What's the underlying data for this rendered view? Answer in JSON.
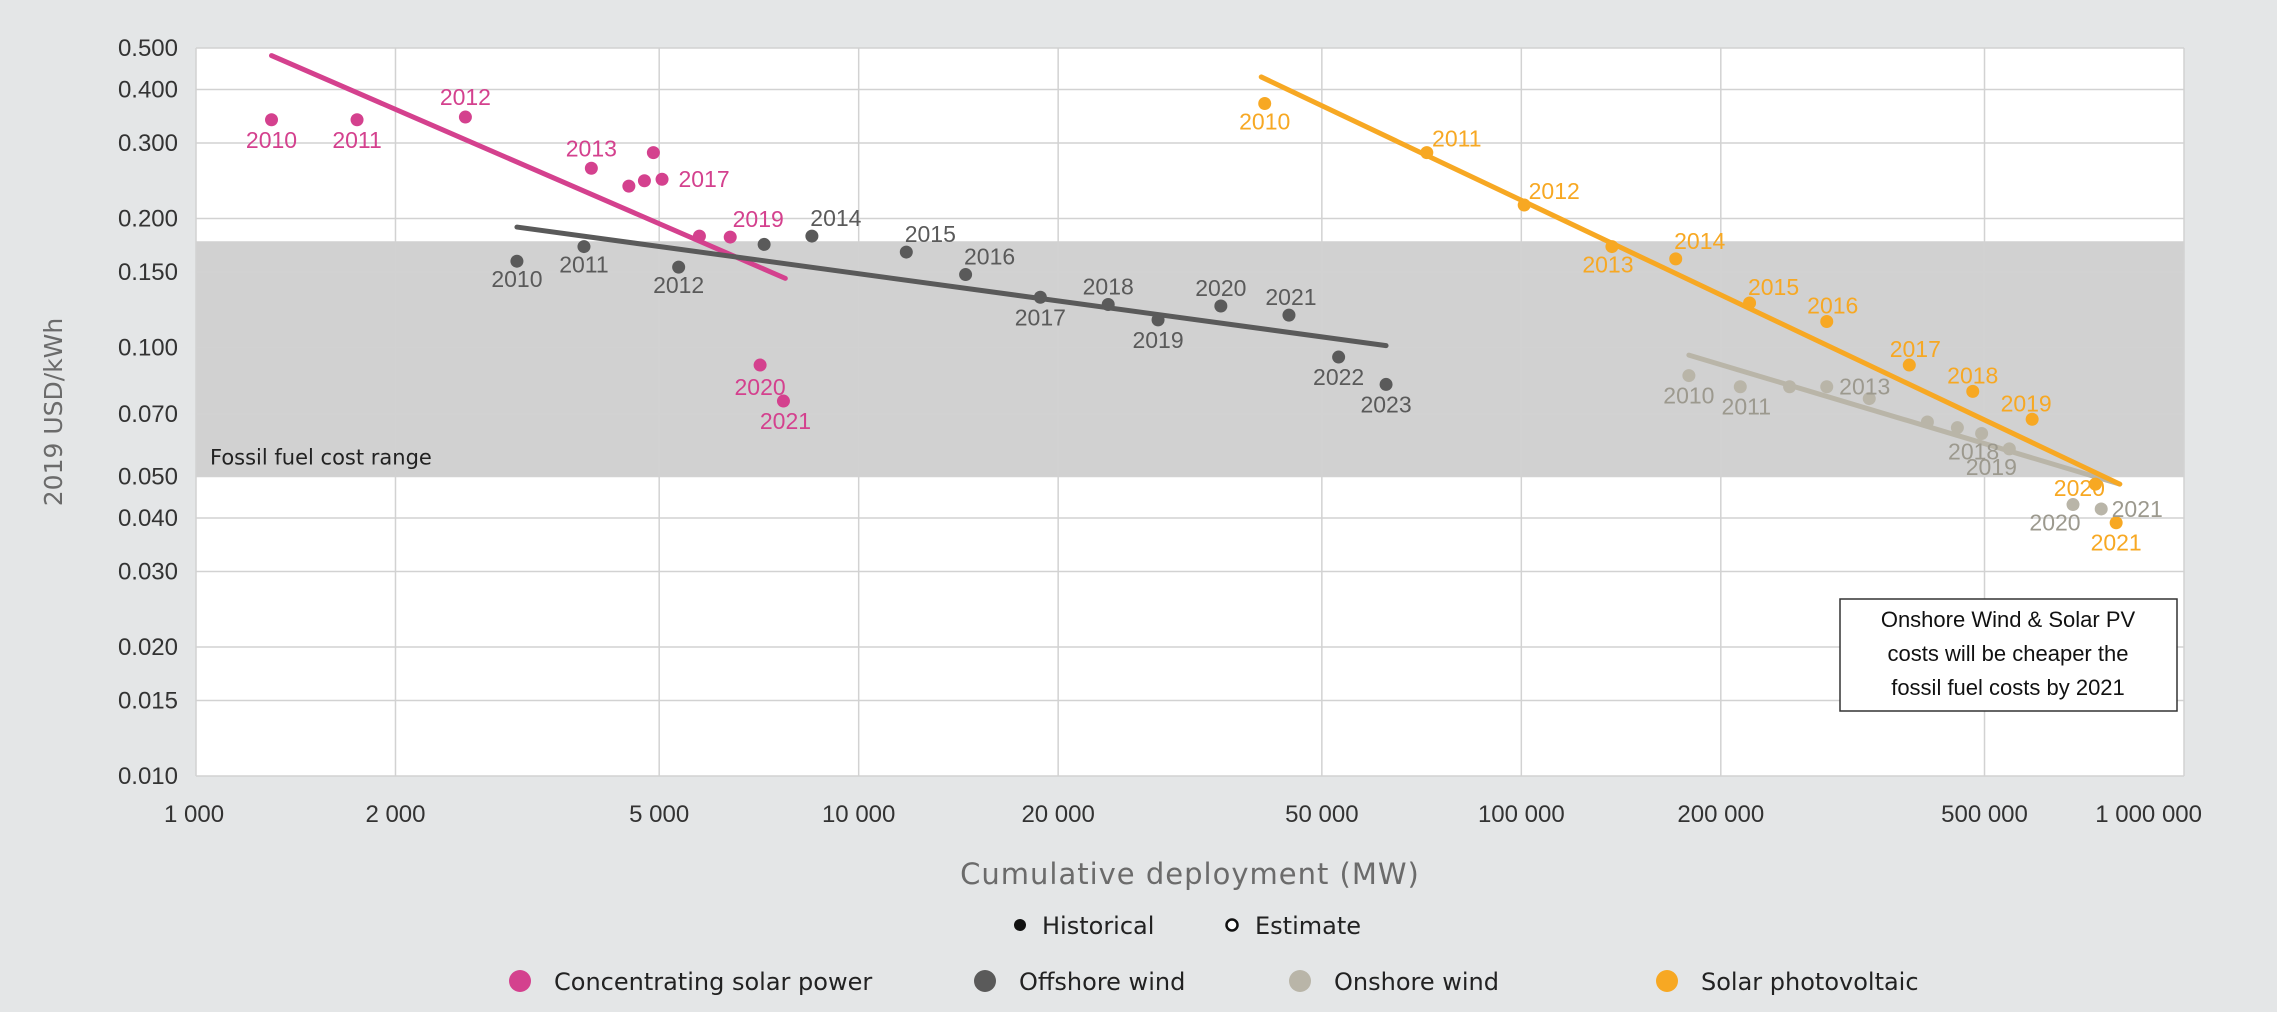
{
  "chart_data": {
    "type": "scatter",
    "title": "",
    "xlabel": "Cumulative deployment (MW)",
    "ylabel": "2019 USD/kWh",
    "xscale": "log",
    "yscale": "log",
    "xlim": [
      1000,
      1000000
    ],
    "ylim": [
      0.01,
      0.5
    ],
    "x_ticks": [
      {
        "value": 1000,
        "label": "1 000"
      },
      {
        "value": 2000,
        "label": "2 000"
      },
      {
        "value": 5000,
        "label": "5 000"
      },
      {
        "value": 10000,
        "label": "10 000"
      },
      {
        "value": 20000,
        "label": "20 000"
      },
      {
        "value": 50000,
        "label": "50 000"
      },
      {
        "value": 100000,
        "label": "100 000"
      },
      {
        "value": 200000,
        "label": "200 000"
      },
      {
        "value": 500000,
        "label": "500 000"
      },
      {
        "value": 1000000,
        "label": "1 000 000"
      }
    ],
    "y_ticks": [
      {
        "value": 0.5,
        "label": "0.500"
      },
      {
        "value": 0.4,
        "label": "0.400"
      },
      {
        "value": 0.3,
        "label": "0.300"
      },
      {
        "value": 0.2,
        "label": "0.200"
      },
      {
        "value": 0.15,
        "label": "0.150"
      },
      {
        "value": 0.1,
        "label": "0.100"
      },
      {
        "value": 0.07,
        "label": "0.070"
      },
      {
        "value": 0.05,
        "label": "0.050"
      },
      {
        "value": 0.04,
        "label": "0.040"
      },
      {
        "value": 0.03,
        "label": "0.030"
      },
      {
        "value": 0.02,
        "label": "0.020"
      },
      {
        "value": 0.015,
        "label": "0.015"
      },
      {
        "value": 0.01,
        "label": "0.010"
      }
    ],
    "grid": true,
    "fossil_band": {
      "low": 0.05,
      "high": 0.177,
      "label": "Fossil fuel cost range"
    },
    "annotation": [
      "Onshore Wind & Solar PV",
      "costs will be cheaper the",
      "fossil fuel costs by 2021"
    ],
    "marker_legend": {
      "historical": "Historical",
      "estimate": "Estimate"
    },
    "legend_placement": "bottom",
    "series": [
      {
        "name": "Concentrating solar power",
        "color": "#d4418e",
        "points": [
          {
            "x": 1300,
            "y": 0.34,
            "label": "2010",
            "dx": 0,
            "dy": 28
          },
          {
            "x": 1750,
            "y": 0.34,
            "label": "2011",
            "dx": 0,
            "dy": 28
          },
          {
            "x": 2550,
            "y": 0.345,
            "label": "2012",
            "dx": 0,
            "dy": -12
          },
          {
            "x": 3950,
            "y": 0.262,
            "label": "2013",
            "dx": 0,
            "dy": -12
          },
          {
            "x": 4500,
            "y": 0.238,
            "label": ""
          },
          {
            "x": 4750,
            "y": 0.245,
            "label": ""
          },
          {
            "x": 4900,
            "y": 0.285,
            "label": ""
          },
          {
            "x": 5050,
            "y": 0.247,
            "label": "2017",
            "dx": 42,
            "dy": 8
          },
          {
            "x": 5750,
            "y": 0.182,
            "label": ""
          },
          {
            "x": 6400,
            "y": 0.181,
            "label": "2019",
            "dx": 28,
            "dy": -10
          },
          {
            "x": 7100,
            "y": 0.091,
            "label": "2020",
            "dx": 0,
            "dy": 30
          },
          {
            "x": 7700,
            "y": 0.075,
            "label": "2021",
            "dx": 2,
            "dy": 28
          }
        ],
        "trend": [
          [
            1300,
            0.48
          ],
          [
            7750,
            0.145
          ]
        ]
      },
      {
        "name": "Offshore wind",
        "color": "#5a5a5a",
        "points": [
          {
            "x": 3050,
            "y": 0.159,
            "label": "2010",
            "dx": 0,
            "dy": 26
          },
          {
            "x": 3850,
            "y": 0.172,
            "label": "2011",
            "dx": 0,
            "dy": 26
          },
          {
            "x": 5350,
            "y": 0.154,
            "label": "2012",
            "dx": 0,
            "dy": 26
          },
          {
            "x": 8500,
            "y": 0.182,
            "label": "2014",
            "dx": 24,
            "dy": -10
          },
          {
            "x": 7200,
            "y": 0.174,
            "label": ""
          },
          {
            "x": 11800,
            "y": 0.167,
            "label": "2015",
            "dx": 24,
            "dy": -10
          },
          {
            "x": 14500,
            "y": 0.148,
            "label": "2016",
            "dx": 24,
            "dy": -10
          },
          {
            "x": 18800,
            "y": 0.131,
            "label": "2017",
            "dx": 0,
            "dy": 28
          },
          {
            "x": 23800,
            "y": 0.126,
            "label": "2018",
            "dx": 0,
            "dy": -10
          },
          {
            "x": 28300,
            "y": 0.116,
            "label": "2019",
            "dx": 0,
            "dy": 28
          },
          {
            "x": 35200,
            "y": 0.125,
            "label": "2020",
            "dx": 0,
            "dy": -10
          },
          {
            "x": 44600,
            "y": 0.119,
            "label": "2021",
            "dx": 2,
            "dy": -10
          },
          {
            "x": 53000,
            "y": 0.095,
            "label": "2022",
            "dx": 0,
            "dy": 28
          },
          {
            "x": 62500,
            "y": 0.082,
            "label": "2023",
            "dx": 0,
            "dy": 28
          }
        ],
        "trend": [
          [
            3050,
            0.191
          ],
          [
            62500,
            0.101
          ]
        ]
      },
      {
        "name": "Onshore wind",
        "color": "#b9b5a8",
        "points": [
          {
            "x": 179000,
            "y": 0.086,
            "label": "2010",
            "dx": 0,
            "dy": 28
          },
          {
            "x": 214000,
            "y": 0.081,
            "label": "2011",
            "dx": 6,
            "dy": 28
          },
          {
            "x": 254000,
            "y": 0.081,
            "label": ""
          },
          {
            "x": 289000,
            "y": 0.081,
            "label": "2013",
            "dx": 38,
            "dy": 8
          },
          {
            "x": 335000,
            "y": 0.076,
            "label": ""
          },
          {
            "x": 410000,
            "y": 0.067,
            "label": ""
          },
          {
            "x": 455000,
            "y": 0.065,
            "label": ""
          },
          {
            "x": 495000,
            "y": 0.063,
            "label": "2018",
            "dx": -8,
            "dy": 26
          },
          {
            "x": 545000,
            "y": 0.058,
            "label": "2019",
            "dx": -18,
            "dy": 26
          },
          {
            "x": 680000,
            "y": 0.043,
            "label": "2020",
            "dx": -18,
            "dy": 26
          },
          {
            "x": 750000,
            "y": 0.042,
            "label": "2021",
            "dx": 36,
            "dy": 8
          }
        ],
        "trend": [
          [
            179000,
            0.096
          ],
          [
            800000,
            0.048
          ]
        ]
      },
      {
        "name": "Solar photovoltaic",
        "color": "#f7a823",
        "points": [
          {
            "x": 41000,
            "y": 0.371,
            "label": "2010",
            "dx": 0,
            "dy": 26
          },
          {
            "x": 72000,
            "y": 0.285,
            "label": "2011",
            "dx": 30,
            "dy": -6
          },
          {
            "x": 101000,
            "y": 0.215,
            "label": "2012",
            "dx": 30,
            "dy": -6
          },
          {
            "x": 137000,
            "y": 0.172,
            "label": "2013",
            "dx": -4,
            "dy": 26
          },
          {
            "x": 171000,
            "y": 0.161,
            "label": "2014",
            "dx": 24,
            "dy": -10
          },
          {
            "x": 221000,
            "y": 0.127,
            "label": "2015",
            "dx": 24,
            "dy": -8
          },
          {
            "x": 289000,
            "y": 0.115,
            "label": "2016",
            "dx": 6,
            "dy": -8
          },
          {
            "x": 385000,
            "y": 0.091,
            "label": "2017",
            "dx": 6,
            "dy": -8
          },
          {
            "x": 480000,
            "y": 0.079,
            "label": "2018",
            "dx": 0,
            "dy": -8
          },
          {
            "x": 590000,
            "y": 0.068,
            "label": "2019",
            "dx": -6,
            "dy": -8
          },
          {
            "x": 735000,
            "y": 0.048,
            "label": "2020",
            "dx": -16,
            "dy": 12
          },
          {
            "x": 790000,
            "y": 0.039,
            "label": "2021",
            "dx": 0,
            "dy": 28
          }
        ],
        "trend": [
          [
            40500,
            0.428
          ],
          [
            800000,
            0.048
          ]
        ]
      }
    ]
  }
}
